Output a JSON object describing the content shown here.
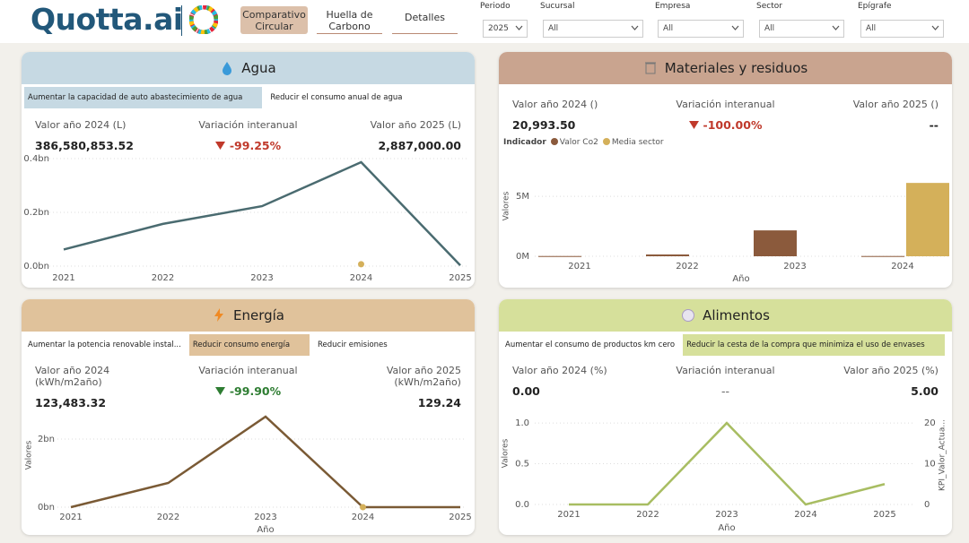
{
  "header": {
    "logo": "Quotta.ai",
    "tabs": [
      "Comparativo Circular",
      "Huella de Carbono",
      "Detalles"
    ],
    "active_tab": 0,
    "filters": [
      {
        "label": "Periodo",
        "value": "2025"
      },
      {
        "label": "Sucursal",
        "value": "All"
      },
      {
        "label": "Empresa",
        "value": "All"
      },
      {
        "label": "Sector",
        "value": "All"
      },
      {
        "label": "Epígrafe",
        "value": "All"
      }
    ]
  },
  "panels": [
    {
      "title": "Agua",
      "color": "#c6d9e3",
      "tabs": [
        "Aumentar la capacidad de auto abastecimiento de agua",
        "Reducir el consumo anual de agua"
      ],
      "active_tab": 0,
      "kpis": [
        {
          "label": "Valor año 2024 (L)",
          "value": "386,580,853.52"
        },
        {
          "label": "Variación interanual",
          "value": "-99.25%",
          "arrow": "down",
          "color": "#c0392b"
        },
        {
          "label": "Valor año 2025 (L)",
          "value": "2,887,000.00"
        }
      ],
      "chart_data": {
        "type": "line",
        "categories": [
          "2021",
          "2022",
          "2023",
          "2024",
          "2025"
        ],
        "series": [
          {
            "color": "#4a6b70",
            "values": [
              0.062,
              0.157,
              0.223,
              0.3866,
              0.0029
            ]
          },
          {
            "color": "#d4b05a",
            "values": [
              null,
              null,
              null,
              0.007,
              null
            ]
          }
        ],
        "ylim": [
          0,
          0.4
        ],
        "yticks": [
          {
            "value": 0,
            "label": "0.0bn"
          },
          {
            "value": 0.2,
            "label": "0.2bn"
          },
          {
            "value": 0.4,
            "label": "0.4bn"
          }
        ],
        "grid": true
      }
    },
    {
      "title": "Materiales y residuos",
      "color": "#c9a48f",
      "kpis": [
        {
          "label": "Valor año 2024 ()",
          "value": "20,993.50"
        },
        {
          "label": "Variación interanual",
          "value": "-100.00%",
          "arrow": "down",
          "color": "#c0392b"
        },
        {
          "label": "Valor año 2025 ()",
          "value": "--"
        }
      ],
      "chart_data": {
        "type": "bar",
        "legend_title": "Indicador",
        "categories": [
          "2021",
          "2022",
          "2023",
          "2024"
        ],
        "series": [
          {
            "name": "Valor Co2",
            "color": "#8b5a3c",
            "values": [
              20000,
              150000,
              2160000,
              20993.5
            ]
          },
          {
            "name": "Media sector",
            "color": "#d4b05a",
            "values": [
              null,
              null,
              null,
              6120000
            ]
          }
        ],
        "ylim": [
          0,
          8000000
        ],
        "yticks": [
          {
            "value": 0,
            "label": "0M"
          },
          {
            "value": 5000000,
            "label": "5M"
          }
        ],
        "ylabel": "Valores",
        "xlabel": "Año",
        "grid": true
      }
    },
    {
      "title": "Energía",
      "color": "#e0c29b",
      "tabs": [
        "Aumentar la potencia renovable instal...",
        "Reducir consumo energía",
        "Reducir emisiones"
      ],
      "active_tab": 1,
      "kpis": [
        {
          "label": "Valor año 2024 (kWh/m2año)",
          "value": "123,483.32"
        },
        {
          "label": "Variación interanual",
          "value": "-99.90%",
          "arrow": "down",
          "color": "#2e7d32"
        },
        {
          "label": "Valor año 2025 (kWh/m2año)",
          "value": "129.24"
        }
      ],
      "chart_data": {
        "type": "line",
        "categories": [
          "2021",
          "2022",
          "2023",
          "2024",
          "2025"
        ],
        "series": [
          {
            "color": "#7a5a35",
            "values": [
              0,
              0.71,
              2.66,
              0.00012,
              1.3e-07
            ]
          },
          {
            "color": "#d4b05a",
            "values": [
              null,
              null,
              null,
              0,
              null
            ]
          }
        ],
        "ylim": [
          0,
          3
        ],
        "yticks": [
          {
            "value": 0,
            "label": "0bn"
          },
          {
            "value": 2,
            "label": "2bn"
          }
        ],
        "ylabel": "Valores",
        "xlabel": "Año",
        "grid": true
      }
    },
    {
      "title": "Alimentos",
      "color": "#d6e09b",
      "tabs": [
        "Aumentar el consumo de productos km cero",
        "Reducir la cesta de la compra que minimiza el uso de envases"
      ],
      "active_tab": 1,
      "kpis": [
        {
          "label": "Valor año 2024 (%)",
          "value": "0.00"
        },
        {
          "label": "Variación interanual",
          "value": "--"
        },
        {
          "label": "Valor año 2025 (%)",
          "value": "5.00"
        }
      ],
      "chart_data": {
        "type": "line",
        "categories": [
          "2021",
          "2022",
          "2023",
          "2024",
          "2025"
        ],
        "series": [
          {
            "color": "#a8bd62",
            "values": [
              0,
              0,
              1.0,
              0,
              0.25
            ]
          }
        ],
        "ylim": [
          0,
          1.1
        ],
        "yticks": [
          {
            "value": 0,
            "label": "0.0"
          },
          {
            "value": 0.5,
            "label": "0.5"
          },
          {
            "value": 1,
            "label": "1.0"
          }
        ],
        "y2lim": [
          0,
          22
        ],
        "y2ticks": [
          0,
          10,
          20
        ],
        "ylabel": "Valores",
        "xlabel": "Año",
        "y2label": "KPI_Valor_Actua...",
        "grid": true
      }
    }
  ]
}
